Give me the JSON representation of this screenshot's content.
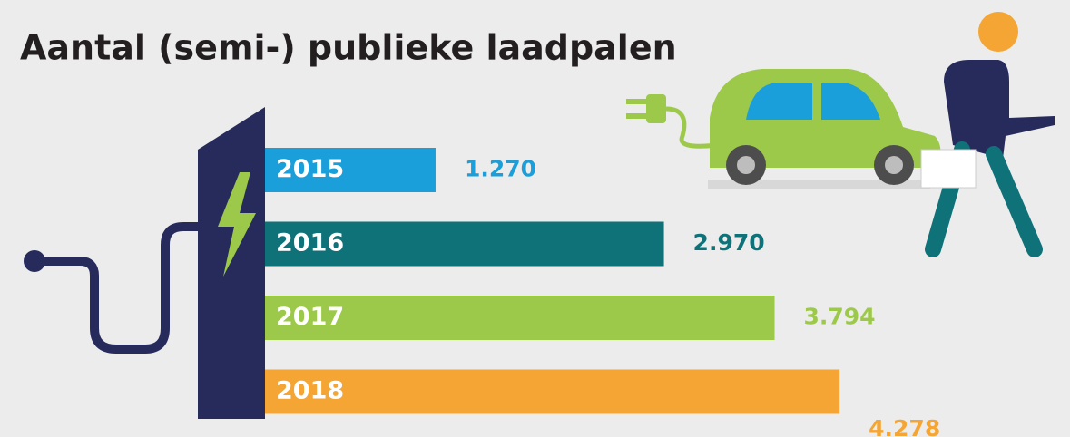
{
  "chart_data": {
    "type": "bar",
    "orientation": "horizontal",
    "title": "Aantal (semi-) publieke laadpalen",
    "categories": [
      "2015",
      "2016",
      "2017",
      "2018"
    ],
    "values": [
      1270,
      2970,
      3794,
      4278
    ],
    "value_labels": [
      "1.270",
      "2.970",
      "3.794",
      "4.278"
    ],
    "colors": [
      "#1a9fdb",
      "#0f7278",
      "#9dc94a",
      "#f5a533"
    ]
  }
}
